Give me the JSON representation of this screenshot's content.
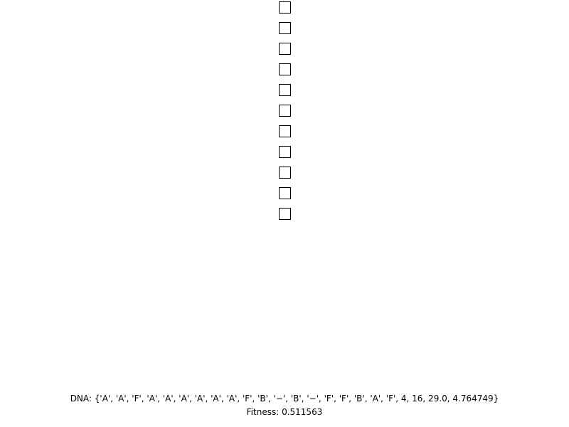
{
  "shapes": [
    {
      "shape": "square"
    },
    {
      "shape": "square"
    },
    {
      "shape": "square"
    },
    {
      "shape": "square"
    },
    {
      "shape": "square"
    },
    {
      "shape": "square"
    },
    {
      "shape": "square"
    },
    {
      "shape": "square"
    },
    {
      "shape": "square"
    },
    {
      "shape": "square"
    },
    {
      "shape": "square"
    }
  ],
  "colors": {
    "background": "#ffffff",
    "stroke": "#000000",
    "text": "#000000"
  },
  "info": {
    "dna_text": "DNA: {'A', 'A', 'F', 'A', 'A', 'A', 'A', 'A', 'A', 'F', 'B', '−', 'B', '−', 'F', 'F', 'B', 'A', 'F', 4, 16, 29.0, 4.764749}",
    "fitness_text": "Fitness: 0.511563"
  }
}
